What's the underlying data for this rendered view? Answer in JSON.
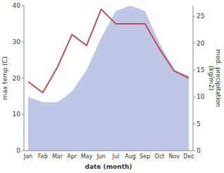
{
  "chart_data": {
    "type": "line",
    "xlabel": "date (month)",
    "ylabel": "max temp (C)",
    "y2label": "med. precipitation\n(kg/m2)",
    "categories": [
      "Jan",
      "Feb",
      "Mar",
      "Apr",
      "May",
      "Jun",
      "Jul",
      "Aug",
      "Sep",
      "Oct",
      "Nov",
      "Dec"
    ],
    "series": [
      {
        "type": "area",
        "axis": "y2",
        "color": "#aab4e0",
        "values": [
          10,
          9,
          9,
          11,
          15,
          21,
          26,
          27,
          26,
          20,
          15,
          14
        ]
      },
      {
        "type": "line",
        "color": "#c0504d",
        "values": [
          19,
          16,
          23,
          32,
          29,
          39,
          35,
          35,
          35,
          28,
          22,
          20
        ]
      }
    ],
    "ylim": [
      0,
      40
    ],
    "yticks": [
      0,
      10,
      20,
      30,
      40
    ],
    "y2lim": [
      0,
      27
    ],
    "y2ticks": [
      0,
      5,
      10,
      15,
      20,
      25
    ]
  }
}
